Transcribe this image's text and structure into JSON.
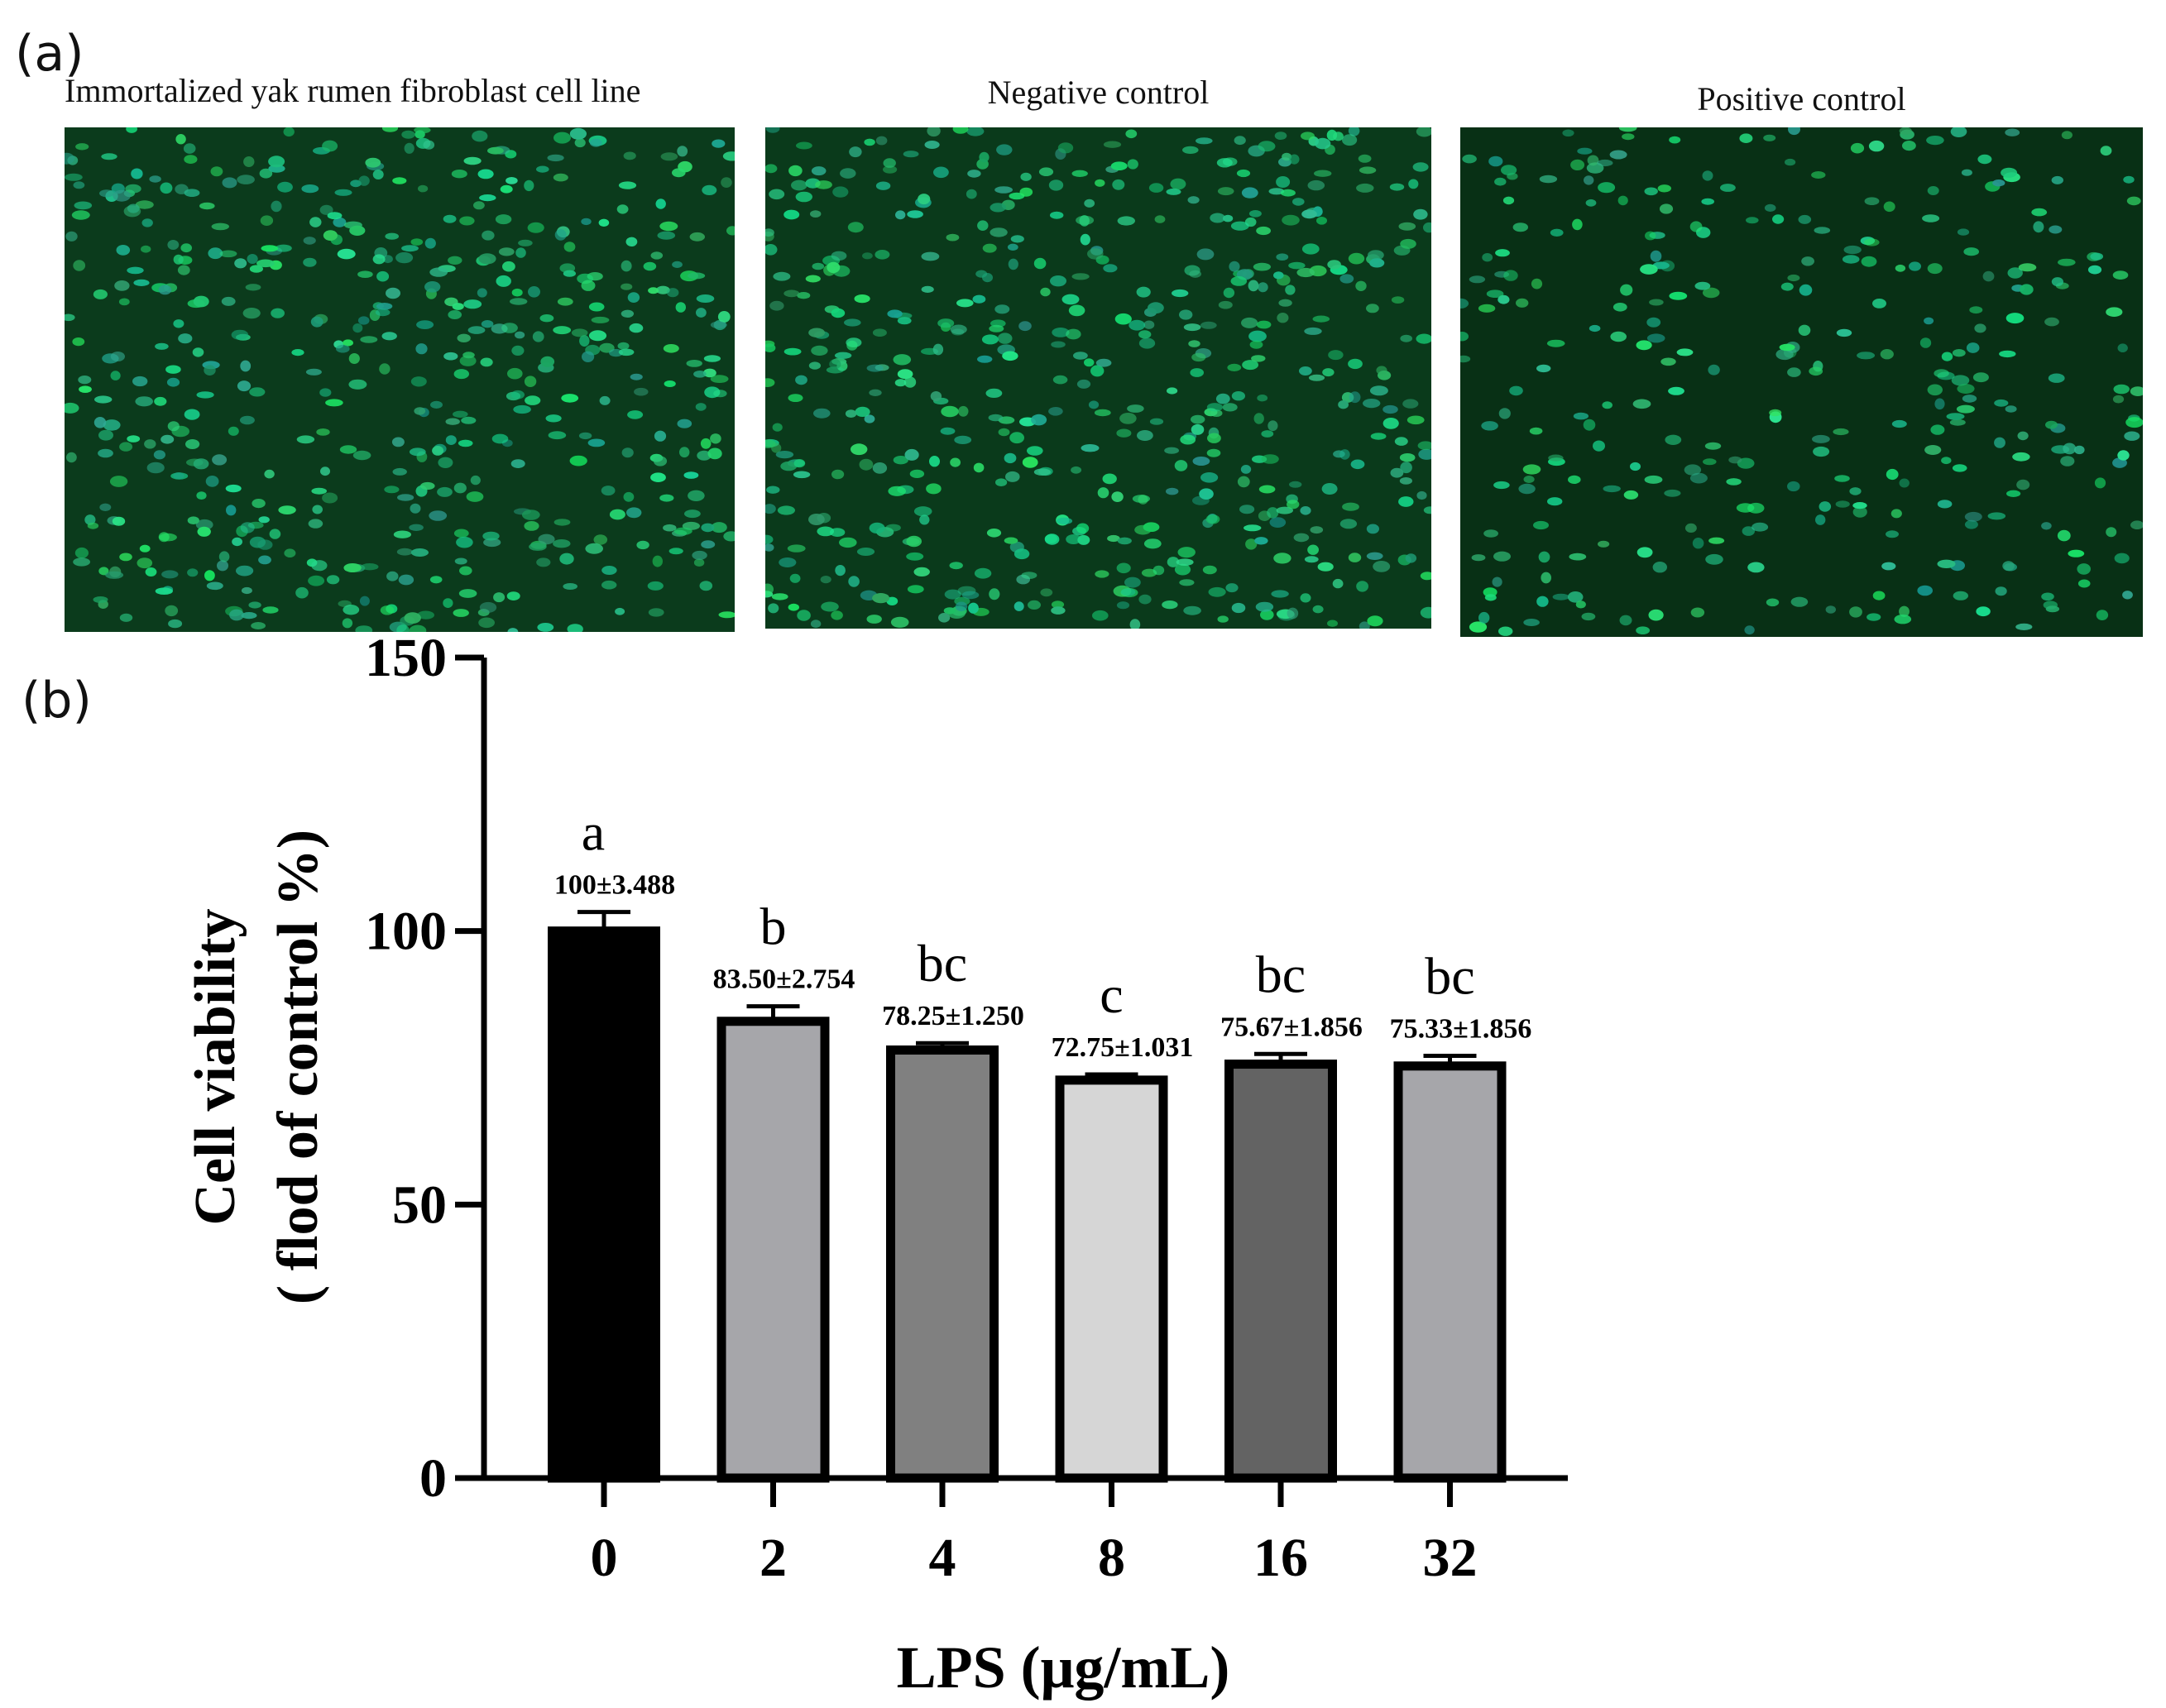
{
  "panel_a": {
    "label": "(a)",
    "images": [
      {
        "caption": "Immortalized yak rumen fibroblast cell line",
        "density": 0.95,
        "bg": "#0b3b1c"
      },
      {
        "caption": "Negative control",
        "density": 1.0,
        "bg": "#0a3a1b"
      },
      {
        "caption": "Positive control",
        "density": 0.55,
        "bg": "#083015"
      }
    ]
  },
  "panel_b": {
    "label": "(b)"
  },
  "chart_data": {
    "type": "bar",
    "title": "",
    "categories": [
      "0",
      "2",
      "4",
      "8",
      "16",
      "32"
    ],
    "values": [
      100,
      83.5,
      78.25,
      72.75,
      75.67,
      75.33
    ],
    "errors": [
      3.488,
      2.754,
      1.25,
      1.031,
      1.856,
      1.856
    ],
    "value_labels": [
      "100±3.488",
      "83.50±2.754",
      "78.25±1.250",
      "72.75±1.031",
      "75.67±1.856",
      "75.33±1.856"
    ],
    "significance": [
      "a",
      "b",
      "bc",
      "c",
      "bc",
      "bc"
    ],
    "bar_colors": [
      "#000000",
      "#a6a6aa",
      "#808080",
      "#d6d6d6",
      "#636363",
      "#a6a6aa"
    ],
    "ylim": [
      0,
      150
    ],
    "yticks": [
      0,
      50,
      100,
      150
    ],
    "ylabel_line1": "Cell viability",
    "ylabel_line2": "( flod of control %)",
    "xlabel": "LPS (μg/mL)",
    "grid": false,
    "legend": "none"
  }
}
